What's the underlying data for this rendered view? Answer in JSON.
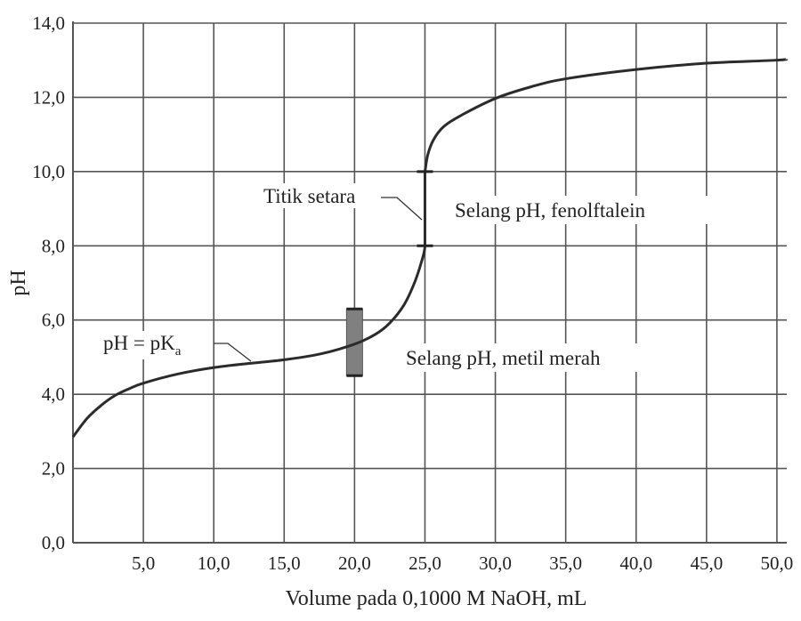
{
  "chart_data": {
    "type": "line",
    "title": "",
    "xlabel": "Volume pada 0,1000 M NaOH, mL",
    "ylabel": "pH",
    "xlim": [
      0,
      50.7
    ],
    "ylim": [
      0,
      14
    ],
    "grid": true,
    "x_ticks": [
      5,
      10,
      15,
      20,
      25,
      30,
      35,
      40,
      45,
      50
    ],
    "x_tick_labels": [
      "5,0",
      "10,0",
      "15,0",
      "20,0",
      "25,0",
      "30,0",
      "35,0",
      "40,0",
      "45,0",
      "50,0"
    ],
    "y_ticks": [
      0,
      2,
      4,
      6,
      8,
      10,
      12,
      14
    ],
    "y_tick_labels": [
      "0,0",
      "2,0",
      "4,0",
      "6,0",
      "8,0",
      "10,0",
      "12,0",
      "14,0"
    ],
    "series": [
      {
        "x": [
          0,
          1,
          2,
          3,
          4,
          5,
          7.5,
          10,
          12.5,
          15,
          17.5,
          20,
          21.5,
          22.5,
          23.5,
          24.2,
          24.7,
          25,
          25,
          25.2,
          25.6,
          26.3,
          27.5,
          30,
          32.5,
          35,
          40,
          45,
          50.7
        ],
        "y": [
          2.85,
          3.35,
          3.7,
          3.97,
          4.15,
          4.3,
          4.55,
          4.72,
          4.83,
          4.93,
          5.08,
          5.35,
          5.62,
          5.92,
          6.4,
          6.95,
          7.5,
          8.0,
          10.0,
          10.45,
          10.85,
          11.2,
          11.5,
          11.97,
          12.28,
          12.5,
          12.75,
          12.92,
          13.03
        ],
        "color": "#2b2b2b"
      }
    ],
    "indicator_ranges": [
      {
        "name": "Selang pH, metil merah",
        "x": 20,
        "ph_low": 4.5,
        "ph_high": 6.3,
        "color": "#808080"
      },
      {
        "name": "Selang pH, fenolftalein",
        "x": 25,
        "ph_low": 8.0,
        "ph_high": 10.0
      }
    ],
    "annotations": {
      "equivalence": "Titik setara",
      "pka_main": "pH = pK",
      "pka_sub": "a",
      "phenolphthalein": "Selang pH, fenolftalein",
      "methyl_red": "Selang pH, metil merah"
    }
  }
}
